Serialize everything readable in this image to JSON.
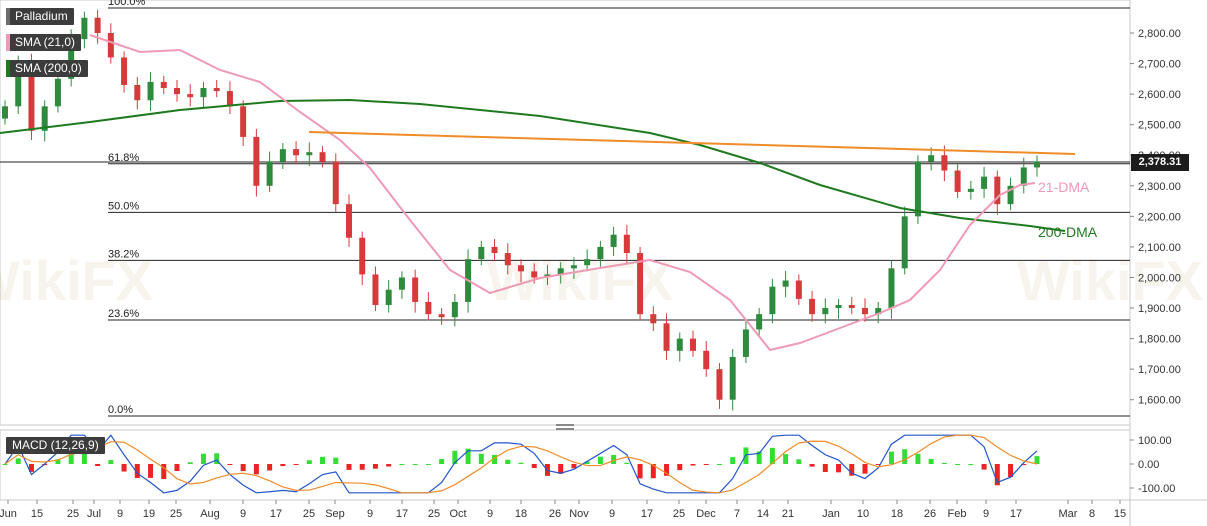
{
  "legend": {
    "symbol": "Palladium",
    "sma21": "SMA (21,0)",
    "sma200": "SMA (200,0)",
    "macd": "MACD (12,26,9)"
  },
  "colors": {
    "up": "#2e8b3e",
    "down": "#d63b3b",
    "sma21": "#ef9ab4",
    "sma200": "#1f7a1f",
    "trendline": "#f08c28",
    "macd_line": "#2255cc",
    "signal_line": "#f08c28",
    "hist_pos": "#33dd33",
    "hist_neg": "#ee2222"
  },
  "chart_data": [
    {
      "type": "candlestick",
      "title": "Palladium",
      "ylim": [
        1550,
        2890
      ],
      "y_ticks": [
        "1,600.00",
        "1,700.00",
        "1,800.00",
        "1,900.00",
        "2,000.00",
        "2,100.00",
        "2,200.00",
        "2,300.00",
        "2,400.00",
        "2,500.00",
        "2,600.00",
        "2,700.00",
        "2,800.00"
      ],
      "x_ticks": [
        "Jun",
        "15",
        "25",
        "Jul",
        "9",
        "19",
        "25",
        "Aug",
        "9",
        "17",
        "25",
        "Sep",
        "9",
        "17",
        "25",
        "Oct",
        "9",
        "18",
        "26",
        "Nov",
        "9",
        "17",
        "25",
        "Dec",
        "7",
        "14",
        "21",
        "Jan",
        "10",
        "18",
        "26",
        "Feb",
        "9",
        "17",
        "Mar",
        "8",
        "15"
      ],
      "last_price": "2,378.31",
      "fib_levels": [
        {
          "label": "100.0%",
          "value": 2880
        },
        {
          "label": "61.8%",
          "value": 2372
        },
        {
          "label": "50.0%",
          "value": 2213
        },
        {
          "label": "38.2%",
          "value": 2056
        },
        {
          "label": "23.6%",
          "value": 1861
        },
        {
          "label": "0.0%",
          "value": 1550
        }
      ],
      "annotations": [
        "21-DMA",
        "200-DMA"
      ],
      "trendline": {
        "from": [
          "Aug 25",
          2475
        ],
        "to": [
          "Feb 25",
          2400
        ]
      },
      "series": [
        {
          "name": "Palladium",
          "ohlc_close": [
            2560,
            2700,
            2480,
            2560,
            2650,
            2780,
            2850,
            2800,
            2720,
            2630,
            2580,
            2640,
            2620,
            2600,
            2590,
            2620,
            2610,
            2560,
            2460,
            2300,
            2380,
            2420,
            2400,
            2410,
            2380,
            2240,
            2130,
            2010,
            1910,
            1960,
            2000,
            1920,
            1880,
            1870,
            1920,
            2060,
            2100,
            2080,
            2040,
            2020,
            2000,
            2010,
            2030,
            2040,
            2060,
            2100,
            2140,
            2080,
            1880,
            1850,
            1760,
            1800,
            1760,
            1700,
            1600,
            1740,
            1830,
            1880,
            1970,
            1990,
            1930,
            1880,
            1900,
            1910,
            1900,
            1880,
            1900,
            2030,
            2200,
            2380,
            2400,
            2350,
            2280,
            2290,
            2330,
            2240,
            2300,
            2360,
            2380
          ]
        },
        {
          "name": "21-DMA",
          "values_desc": "SMA (21,0)"
        },
        {
          "name": "200-DMA",
          "values_desc": "SMA (200,0)"
        }
      ]
    },
    {
      "type": "macd",
      "title": "MACD (12,26,9)",
      "ylim": [
        -140,
        140
      ],
      "y_ticks": [
        "100.00",
        "0.00",
        "-100.00"
      ]
    }
  ]
}
